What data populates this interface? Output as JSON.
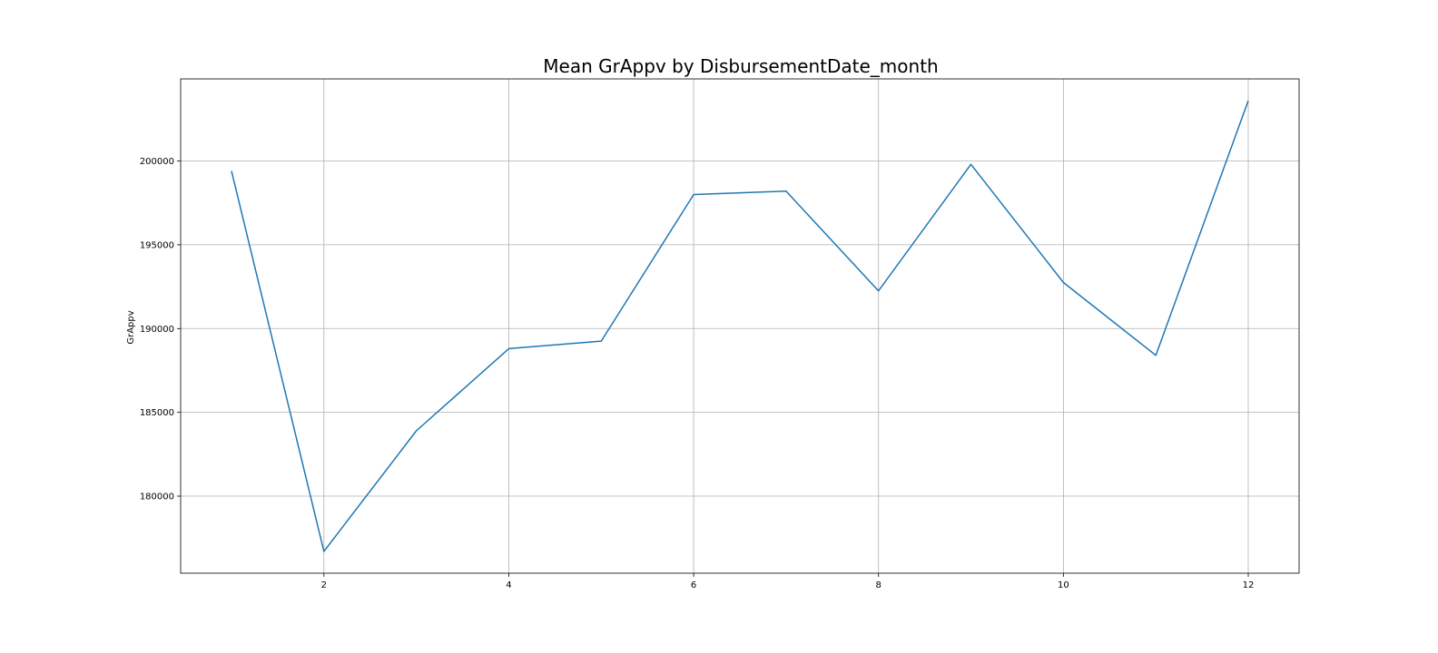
{
  "chart_data": {
    "type": "line",
    "title": "Mean GrAppv by DisbursementDate_month",
    "xlabel": "",
    "ylabel": "GrAppv",
    "x": [
      1,
      2,
      3,
      4,
      5,
      6,
      7,
      8,
      9,
      10,
      11,
      12
    ],
    "series": [
      {
        "values": [
          199400,
          176700,
          183900,
          188800,
          189250,
          198000,
          198200,
          192250,
          199800,
          192750,
          188400,
          203600
        ],
        "color": "#1f77b4"
      }
    ],
    "xlim": [
      0.45,
      12.55
    ],
    "ylim": [
      175400,
      204900
    ],
    "xticks": [
      2,
      4,
      6,
      8,
      10,
      12
    ],
    "xtick_labels": [
      "2",
      "4",
      "6",
      "8",
      "10",
      "12"
    ],
    "yticks": [
      180000,
      185000,
      190000,
      195000,
      200000
    ],
    "ytick_labels": [
      "180000",
      "185000",
      "190000",
      "195000",
      "200000"
    ],
    "grid": true
  }
}
